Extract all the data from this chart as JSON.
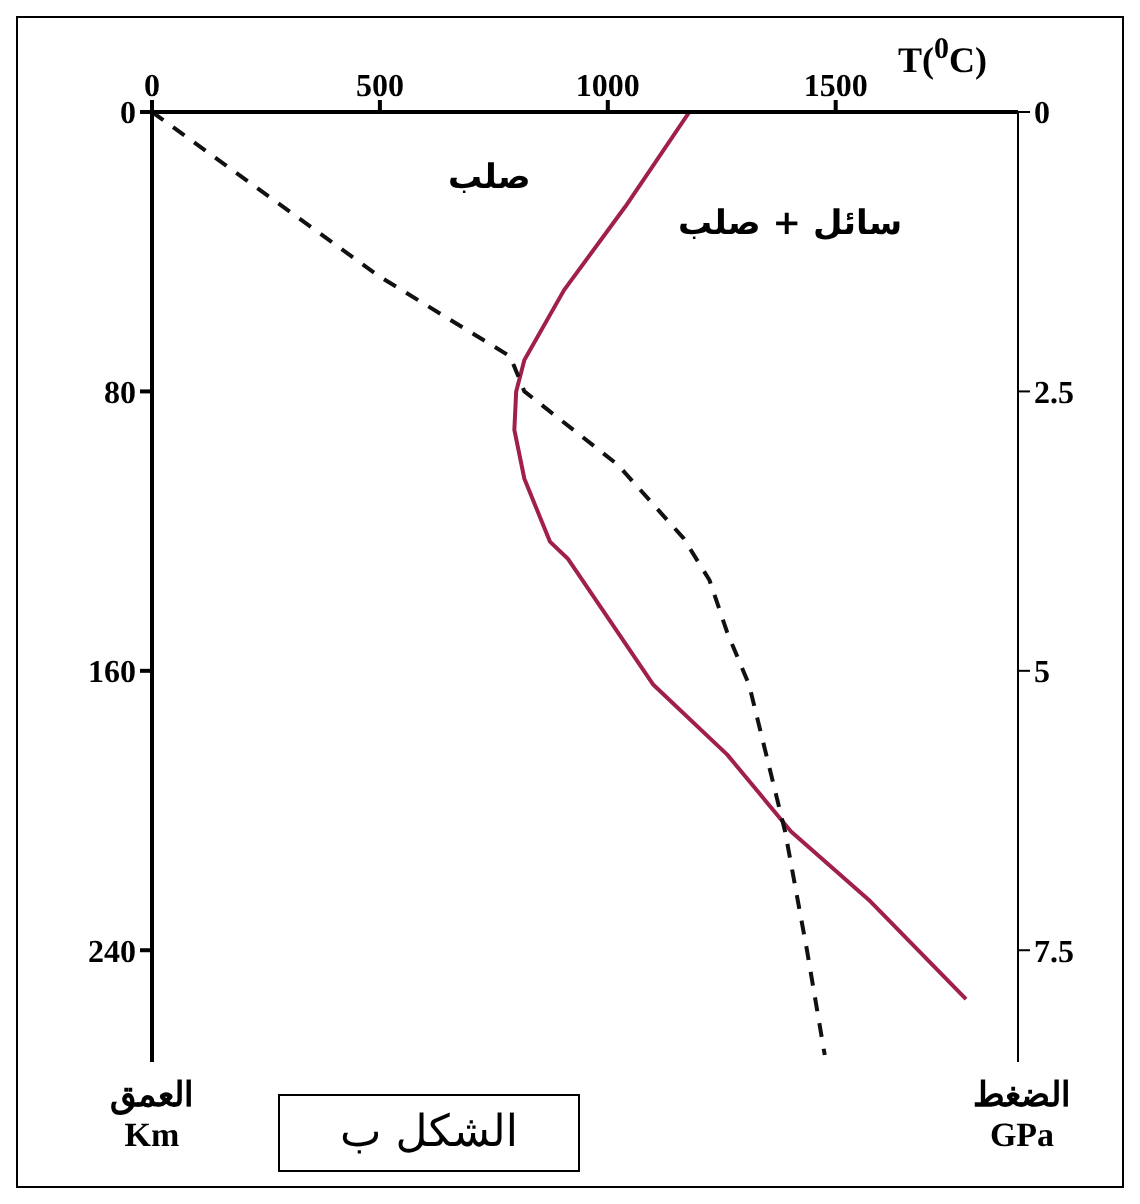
{
  "chart_data": {
    "type": "line",
    "xlabel": "T($^{0}$C)",
    "ylabel": "العمق\nKm",
    "y2label": "الضغط\nGPa",
    "xlim": [
      0,
      1900
    ],
    "xticks": [
      0,
      500,
      1000,
      1500
    ],
    "ylim": [
      272,
      0
    ],
    "yticks": [
      0,
      80,
      160,
      240
    ],
    "y2lim": [
      8.5,
      0
    ],
    "y2ticks": [
      0,
      2.5,
      5,
      7.5
    ],
    "series": [
      {
        "color": "#a0204a",
        "line_style": "solid",
        "x": [
          1179,
          1039,
          904,
          817,
          799,
          795,
          817,
          873,
          913,
          1022,
          1100,
          1262,
          1402,
          1576,
          1786
        ],
        "values": [
          0,
          27,
          51,
          71,
          80,
          91,
          105,
          123,
          128,
          149,
          164,
          184,
          206,
          226,
          254
        ]
      },
      {
        "color": "#111111",
        "line_style": "dashed",
        "x": [
          0,
          498,
          786,
          817,
          1022,
          1166,
          1223,
          1262,
          1310,
          1389,
          1437,
          1476
        ],
        "values": [
          0,
          47,
          70,
          80,
          101,
          122,
          134,
          149,
          164,
          206,
          240,
          270
        ]
      }
    ],
    "annotations": [
      "صلب",
      "سائل + صلب",
      "الشكل ب"
    ],
    "grid": false,
    "legend": false,
    "marker": "none"
  }
}
